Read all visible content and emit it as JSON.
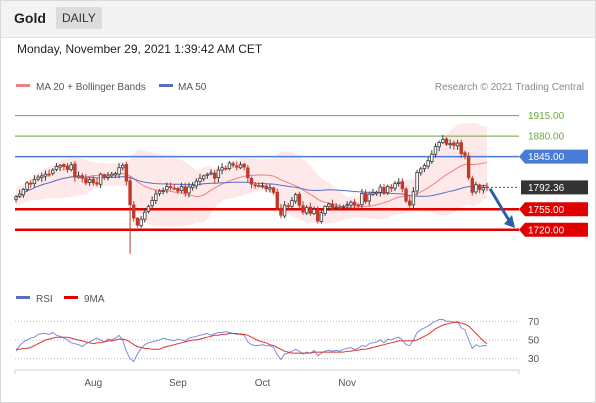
{
  "header": {
    "symbol": "Gold",
    "timeframe": "DAILY",
    "datetime": "Monday, November 29, 2021 1:39:42 AM CET"
  },
  "legend": {
    "ma20": "MA 20 + Bollinger Bands",
    "ma50": "MA 50",
    "rsi": "RSI",
    "rsi_ma": "9MA"
  },
  "copyright": "Research © 2021 Trading Central",
  "colors": {
    "up": "#3a3a3a",
    "down": "#c0392b",
    "ma20": "#f08080",
    "ma50": "#5470c6",
    "band": "#fde3e3",
    "green": "#69a83b",
    "blue": "#4a7bd8",
    "red": "#e00000",
    "dark": "#333333"
  },
  "chart_data": [
    {
      "type": "candlestick",
      "title": "",
      "ylim": [
        1665,
        1945
      ],
      "x_ticks": [
        "Aug",
        "Sep",
        "Oct",
        "Nov"
      ],
      "price_levels": [
        {
          "label": "1915.00",
          "value": 1915,
          "kind": "resistance",
          "color": "#69a83b"
        },
        {
          "label": "1880.00",
          "value": 1880,
          "kind": "resistance",
          "color": "#69a83b"
        },
        {
          "label": "1845.00",
          "value": 1845,
          "kind": "pivot",
          "color": "#4a7bd8"
        },
        {
          "label": "1792.36",
          "value": 1792.36,
          "kind": "last",
          "color": "#333333"
        },
        {
          "label": "1755.00",
          "value": 1755,
          "kind": "support",
          "color": "#e00000"
        },
        {
          "label": "1720.00",
          "value": 1720,
          "kind": "support",
          "color": "#e00000"
        }
      ],
      "arrow": {
        "direction": "down",
        "from": 1790,
        "to": 1723
      },
      "closes": [
        1776,
        1781,
        1789,
        1800,
        1799,
        1806,
        1810,
        1812,
        1815,
        1815,
        1822,
        1828,
        1830,
        1828,
        1823,
        1831,
        1810,
        1812,
        1808,
        1800,
        1806,
        1800,
        1798,
        1815,
        1810,
        1812,
        1815,
        1816,
        1826,
        1830,
        1803,
        1763,
        1740,
        1728,
        1738,
        1750,
        1760,
        1770,
        1781,
        1786,
        1787,
        1794,
        1792,
        1790,
        1786,
        1794,
        1783,
        1793,
        1796,
        1803,
        1808,
        1812,
        1815,
        1817,
        1808,
        1822,
        1826,
        1825,
        1834,
        1830,
        1827,
        1831,
        1827,
        1809,
        1798,
        1795,
        1795,
        1795,
        1790,
        1792,
        1784,
        1758,
        1745,
        1762,
        1760,
        1770,
        1780,
        1762,
        1750,
        1758,
        1748,
        1755,
        1735,
        1749,
        1760,
        1764,
        1758,
        1759,
        1758,
        1760,
        1763,
        1767,
        1762,
        1762,
        1782,
        1768,
        1781,
        1783,
        1784,
        1793,
        1782,
        1794,
        1792,
        1799,
        1801,
        1790,
        1769,
        1762,
        1785,
        1818,
        1824,
        1830,
        1838,
        1849,
        1862,
        1869,
        1874,
        1866,
        1867,
        1864,
        1868,
        1850,
        1847,
        1809,
        1784,
        1797,
        1789,
        1792,
        1792
      ],
      "rsi": {
        "levels": [
          70,
          50,
          30
        ],
        "values": [
          38,
          44,
          48,
          50,
          52,
          53,
          56,
          57,
          57,
          56,
          58,
          55,
          54,
          52,
          50,
          47,
          46,
          45,
          43,
          46,
          48,
          50,
          52,
          50,
          48,
          51,
          50,
          52,
          55,
          50,
          38,
          30,
          27,
          35,
          41,
          45,
          47,
          48,
          49,
          50,
          52,
          51,
          50,
          49,
          51,
          50,
          49,
          52,
          53,
          54,
          55,
          56,
          57,
          55,
          57,
          58,
          58,
          59,
          58,
          57,
          56,
          57,
          55,
          48,
          45,
          44,
          44,
          45,
          44,
          44,
          42,
          34,
          29,
          35,
          36,
          38,
          40,
          38,
          35,
          37,
          36,
          39,
          33,
          36,
          38,
          39,
          38,
          39,
          38,
          40,
          41,
          42,
          40,
          41,
          44,
          43,
          46,
          47,
          48,
          50,
          47,
          51,
          50,
          52,
          53,
          50,
          45,
          44,
          50,
          58,
          61,
          63,
          65,
          68,
          70,
          72,
          72,
          70,
          70,
          69,
          70,
          63,
          61,
          50,
          41,
          45,
          43,
          44,
          44
        ],
        "ma9": [
          40,
          40,
          41,
          41,
          42,
          44,
          46,
          48,
          50,
          51,
          52,
          53,
          53,
          53,
          53,
          52,
          51,
          50,
          49,
          48,
          47,
          46,
          47,
          47,
          48,
          49,
          49,
          50,
          51,
          51,
          50,
          48,
          45,
          43,
          42,
          41,
          41,
          40,
          40,
          40,
          42,
          43,
          44,
          45,
          46,
          47,
          48,
          49,
          50,
          50,
          51,
          52,
          53,
          54,
          55,
          55,
          56,
          56,
          57,
          57,
          57,
          56,
          56,
          55,
          53,
          51,
          49,
          48,
          47,
          45,
          44,
          42,
          40,
          38,
          37,
          36,
          36,
          36,
          36,
          36,
          36,
          37,
          37,
          37,
          37,
          37,
          37,
          37,
          37,
          37,
          38,
          38,
          39,
          39,
          40,
          40,
          41,
          42,
          43,
          44,
          45,
          46,
          47,
          48,
          49,
          49,
          49,
          49,
          49,
          50,
          52,
          54,
          56,
          59,
          62,
          64,
          66,
          67,
          68,
          69,
          69,
          68,
          67,
          65,
          61,
          57,
          53,
          49,
          46
        ]
      }
    }
  ]
}
